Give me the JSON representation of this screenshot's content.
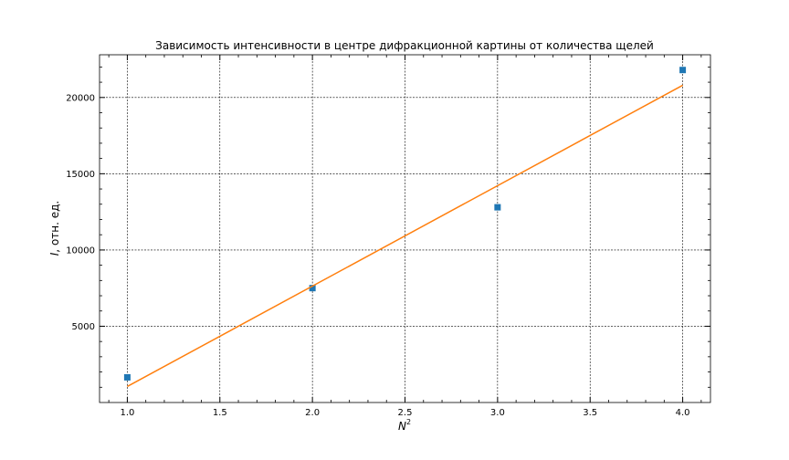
{
  "chart_data": {
    "type": "scatter",
    "title": "Зависимость интенсивности в центре дифракционной картины от количества щелей",
    "xlabel": {
      "base": "N",
      "superscript": "2"
    },
    "ylabel": {
      "italic": "I",
      "rest": ", отн. ед."
    },
    "xlim": [
      0.85,
      4.15
    ],
    "ylim": [
      0,
      22800
    ],
    "x_ticks": [
      "1.0",
      "1.5",
      "2.0",
      "2.5",
      "3.0",
      "3.5",
      "4.0"
    ],
    "y_ticks": [
      "5000",
      "10000",
      "15000",
      "20000"
    ],
    "grid": true,
    "series": [
      {
        "kind": "scatter",
        "x": [
          1,
          2,
          3,
          4
        ],
        "y": [
          1650,
          7500,
          12800,
          21800
        ],
        "color": "#1f77b4",
        "marker": "square"
      },
      {
        "kind": "line",
        "x": [
          1,
          4
        ],
        "y": [
          1050,
          20800
        ],
        "color": "#ff7f0e"
      }
    ]
  }
}
